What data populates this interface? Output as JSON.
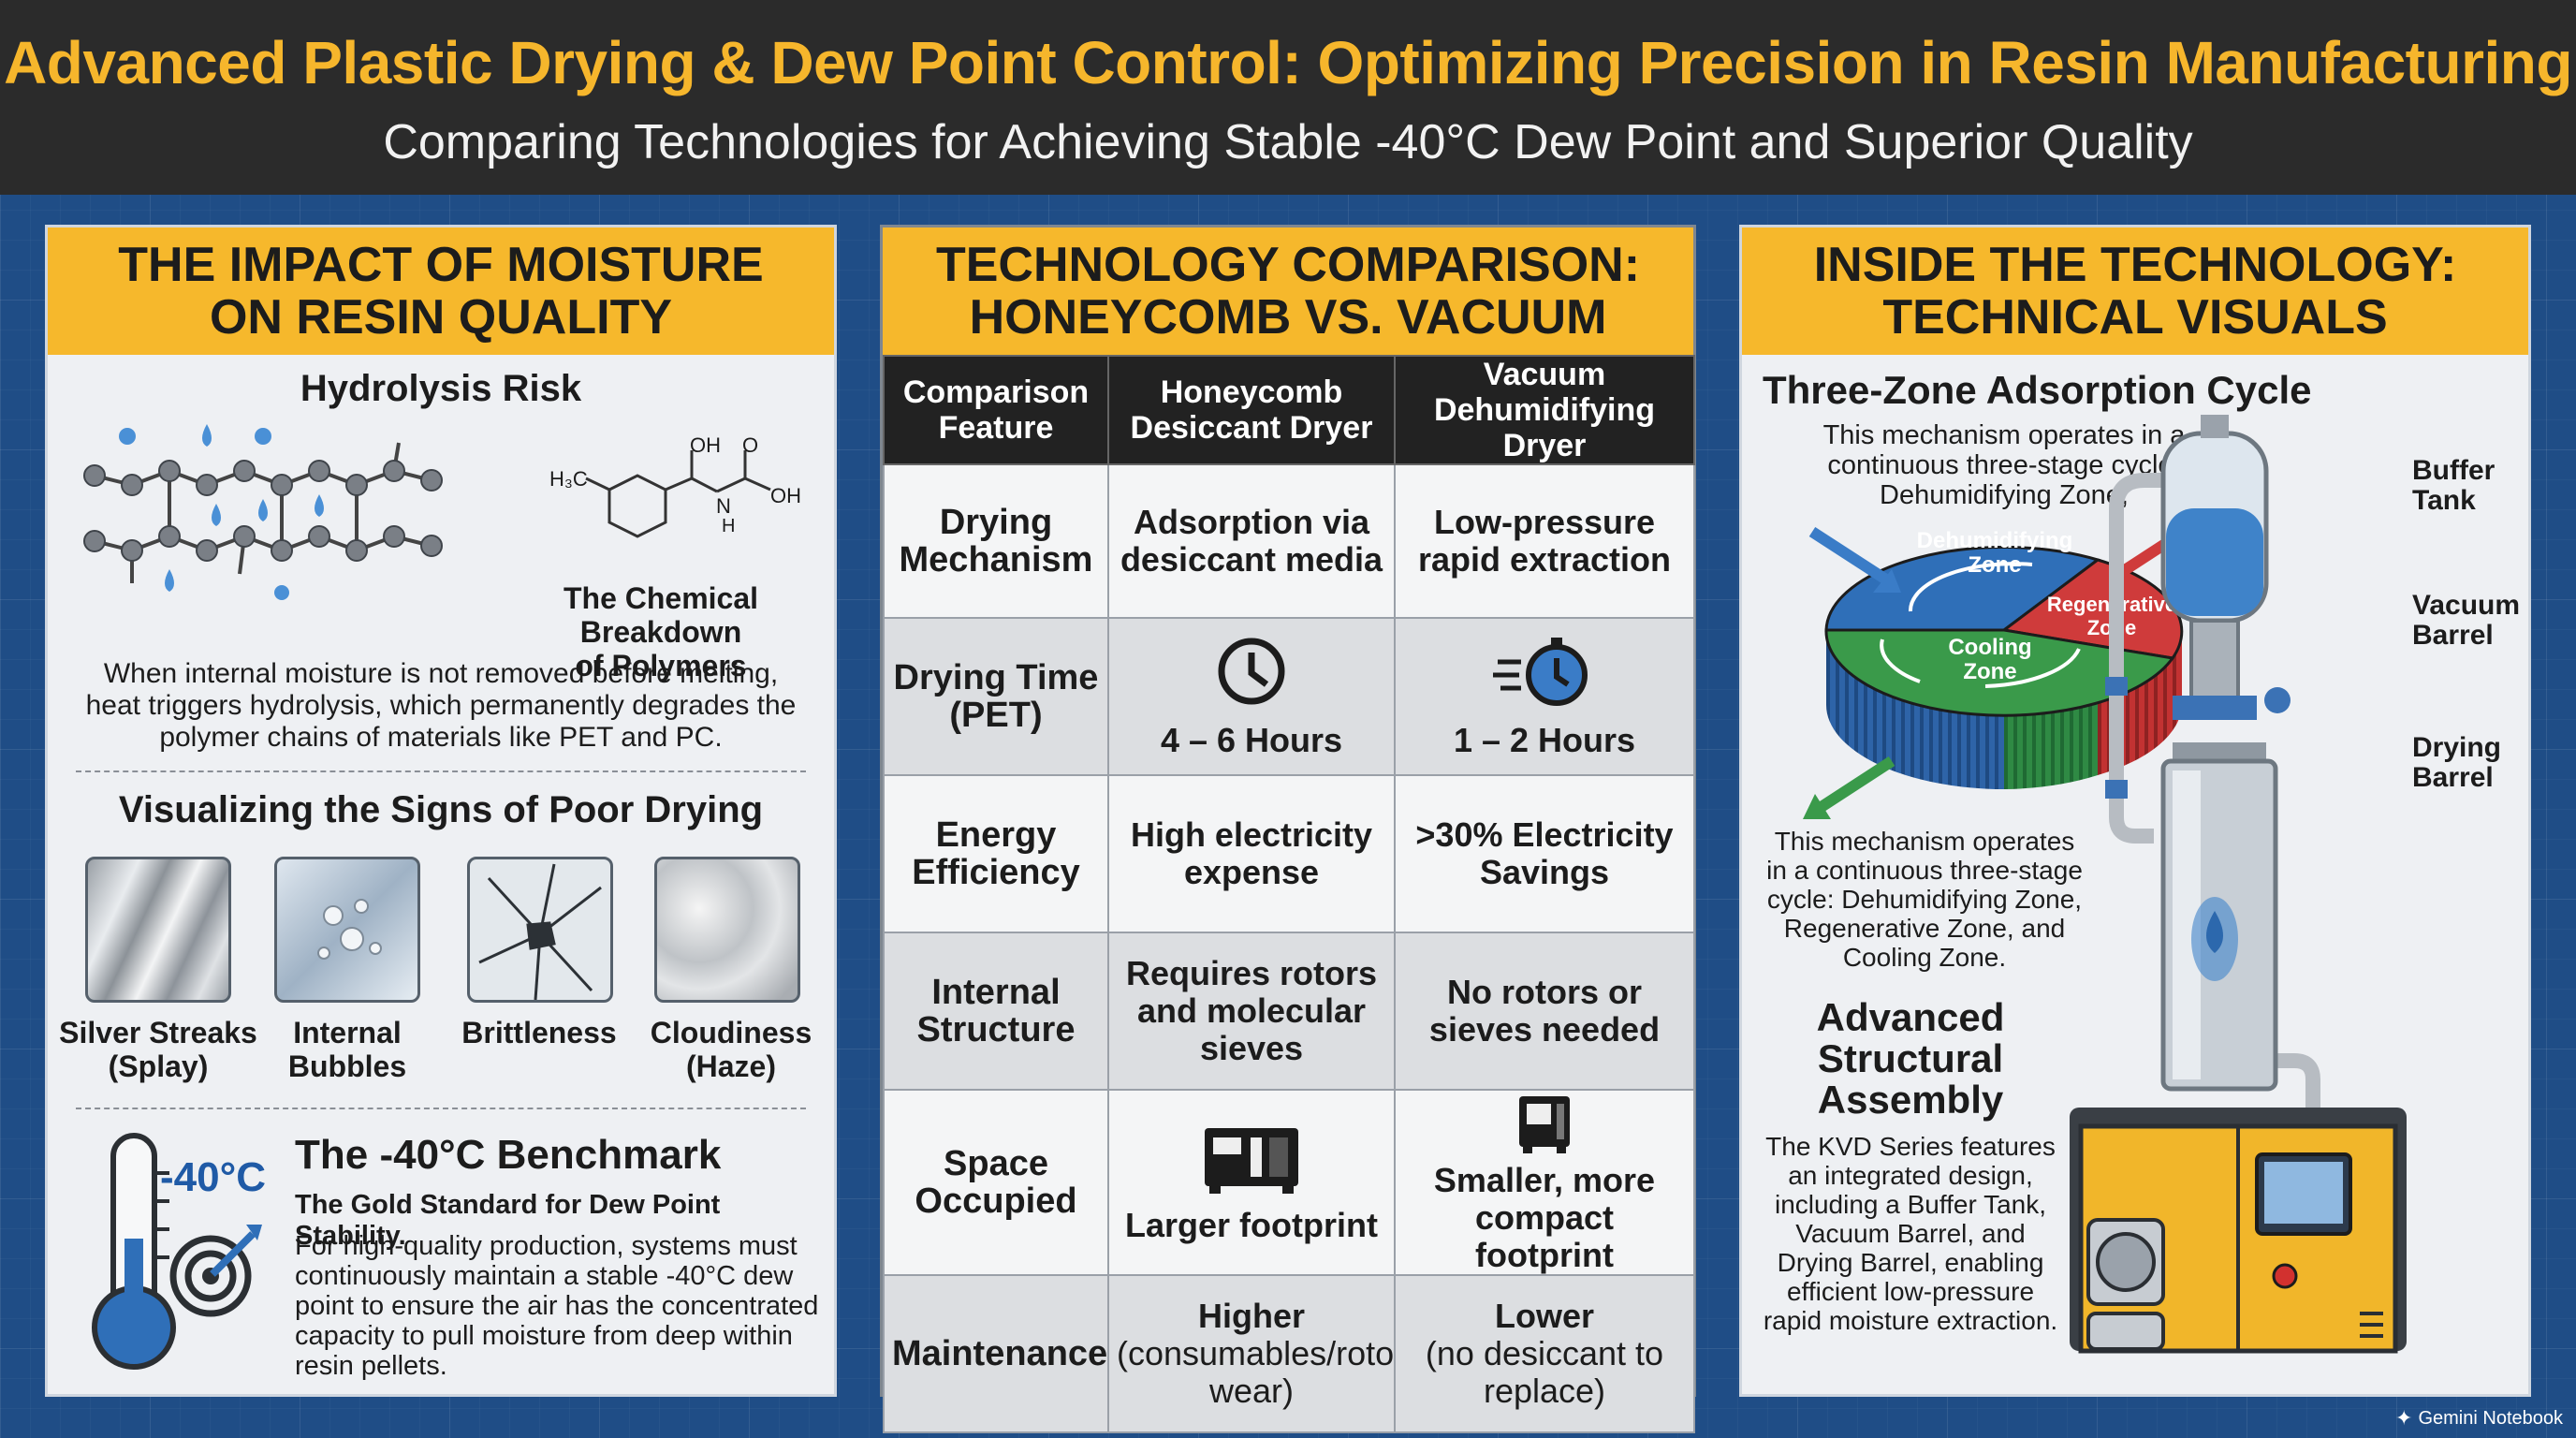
{
  "header": {
    "title": "Advanced Plastic Drying & Dew Point Control: Optimizing Precision in Resin Manufacturing",
    "subtitle": "Comparing Technologies for Achieving Stable -40°C Dew Point and Superior Quality"
  },
  "panel_left": {
    "heading_line1": "THE IMPACT OF MOISTURE",
    "heading_line2": "ON RESIN QUALITY",
    "hydrolysis_title": "Hydrolysis Risk",
    "chem_caption_line1": "The Chemical Breakdown",
    "chem_caption_line2": "of Polymers",
    "molecule_labels": {
      "oh": "OH",
      "o": "O",
      "oh2": "OH",
      "h3c": "H₃C",
      "n": "N",
      "h": "H"
    },
    "hydrolysis_text": "When internal moisture is not removed before melting, heat triggers hydrolysis, which permanently degrades the polymer chains of materials like PET and PC.",
    "signs_title": "Visualizing the Signs of Poor Drying",
    "signs": [
      {
        "line1": "Silver Streaks",
        "line2": "(Splay)",
        "icon": "silver-streaks-icon"
      },
      {
        "line1": "Internal",
        "line2": "Bubbles",
        "icon": "bubbles-icon"
      },
      {
        "line1": "Brittleness",
        "line2": "",
        "icon": "cracked-glass-icon"
      },
      {
        "line1": "Cloudiness",
        "line2": "(Haze)",
        "icon": "haze-icon"
      }
    ],
    "benchmark_value": "-40°C",
    "benchmark_title": "The -40°C Benchmark",
    "benchmark_subtitle": "The Gold Standard for Dew Point Stability.",
    "benchmark_text": "For high-quality production, systems must continuously maintain a stable -40°C dew point to ensure the air has the concentrated capacity to pull moisture from deep within resin pellets."
  },
  "panel_middle": {
    "heading_line1": "TECHNOLOGY COMPARISON:",
    "heading_line2": "HONEYCOMB VS. VACUUM",
    "columns": [
      "Comparison Feature",
      "Honeycomb Desiccant Dryer",
      "Vacuum Dehumidifying Dryer"
    ],
    "rows": [
      {
        "feature": "Drying Mechanism",
        "honeycomb": "Adsorption via desiccant media",
        "vacuum": "Low-pressure rapid extraction"
      },
      {
        "feature": "Drying Time (PET)",
        "honeycomb": "4 – 6 Hours",
        "vacuum": "1 – 2 Hours"
      },
      {
        "feature": "Energy Efficiency",
        "honeycomb": "High electricity expense",
        "vacuum": ">30% Electricity Savings"
      },
      {
        "feature": "Internal Structure",
        "honeycomb": "Requires rotors and molecular sieves",
        "vacuum": "No rotors or sieves needed"
      },
      {
        "feature": "Space Occupied",
        "honeycomb": "Larger footprint",
        "vacuum": "Smaller, more compact footprint"
      },
      {
        "feature": "Maintenance",
        "honeycomb": "Higher",
        "honeycomb_note": "(consumables/rotor wear)",
        "vacuum": "Lower",
        "vacuum_note": "(no desiccant to replace)"
      }
    ]
  },
  "panel_right": {
    "heading_line1": "INSIDE THE TECHNOLOGY:",
    "heading_line2": "TECHNICAL VISUALS",
    "cycle_title": "Three-Zone Adsorption Cycle",
    "cycle_text_top": "This mechanism operates in a continuous three-stage cycle: Dehumidifying Zone,",
    "zones": {
      "dehumidifying_line1": "Dehumidifying",
      "dehumidifying_line2": "Zone",
      "regenerative_line1": "Regenerative",
      "regenerative_line2": "Zone",
      "cooling_line1": "Cooling",
      "cooling_line2": "Zone"
    },
    "cycle_text_bottom": "This mechanism operates in a continuous three-stage cycle: Dehumidifying Zone, Regenerative Zone, and Cooling Zone.",
    "assembly_title": "Advanced Structural Assembly",
    "assembly_text": "The KVD Series features an integrated design, including a Buffer Tank, Vacuum Barrel, and Drying Barrel, enabling efficient low-pressure rapid moisture extraction.",
    "labels": {
      "buffer_line1": "Buffer",
      "buffer_line2": "Tank",
      "vacuum_line1": "Vacuum",
      "vacuum_line2": "Barrel",
      "drying_line1": "Drying",
      "drying_line2": "Barrel"
    }
  },
  "footer": {
    "brand": "Gemini Notebook"
  },
  "colors": {
    "accent": "#f6b82c",
    "banner": "#2b2b2b",
    "background": "#1f4d86",
    "dehumidifying": "#2f6fb8",
    "regenerative": "#cf3b3b",
    "cooling": "#3a9a4a"
  }
}
